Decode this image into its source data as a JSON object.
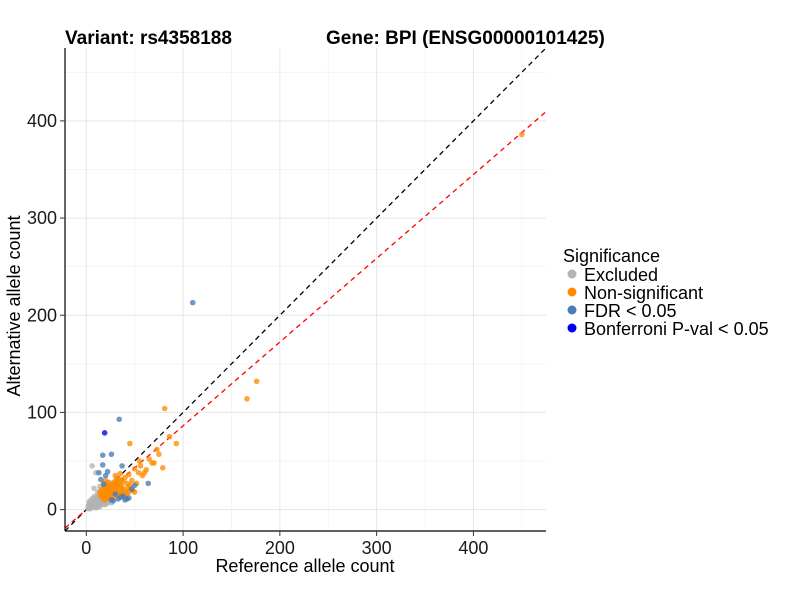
{
  "chart_data": {
    "type": "scatter",
    "title_left": "Variant: rs4358188",
    "title_right": "Gene: BPI (ENSG00000101425)",
    "xlabel": "Reference allele count",
    "ylabel": "Alternative allele count",
    "xlim": [
      -22,
      475
    ],
    "ylim": [
      -22,
      475
    ],
    "xticks": [
      0,
      100,
      200,
      300,
      400
    ],
    "yticks": [
      0,
      100,
      200,
      300,
      400
    ],
    "grid": true,
    "reference_lines": [
      {
        "name": "identity",
        "slope": 1.0,
        "intercept": 0,
        "color": "#000000",
        "dash": true
      },
      {
        "name": "fitted",
        "slope": 0.862,
        "intercept": 0,
        "color": "#ff0000",
        "dash": true
      }
    ],
    "legend": {
      "title": "Significance",
      "position": "right",
      "entries": [
        {
          "label": "Excluded",
          "color": "#b3b3b3"
        },
        {
          "label": "Non-significant",
          "color": "#ff8c00"
        },
        {
          "label": "FDR < 0.05",
          "color": "#4a7cb5"
        },
        {
          "label": "Bonferroni P-val < 0.05",
          "color": "#0000ee"
        }
      ]
    },
    "series": [
      {
        "name": "Excluded",
        "color": "#b3b3b3",
        "points": [
          [
            2,
            1
          ],
          [
            3,
            2
          ],
          [
            4,
            1
          ],
          [
            5,
            3
          ],
          [
            6,
            2
          ],
          [
            7,
            4
          ],
          [
            8,
            3
          ],
          [
            9,
            2
          ],
          [
            10,
            5
          ],
          [
            11,
            4
          ],
          [
            12,
            6
          ],
          [
            13,
            5
          ],
          [
            14,
            3
          ],
          [
            15,
            7
          ],
          [
            16,
            6
          ],
          [
            17,
            8
          ],
          [
            18,
            7
          ],
          [
            19,
            5
          ],
          [
            20,
            9
          ],
          [
            21,
            6
          ],
          [
            22,
            10
          ],
          [
            23,
            8
          ],
          [
            24,
            9
          ],
          [
            25,
            11
          ],
          [
            26,
            7
          ],
          [
            5,
            6
          ],
          [
            8,
            9
          ],
          [
            10,
            12
          ],
          [
            12,
            14
          ],
          [
            14,
            10
          ],
          [
            16,
            12
          ],
          [
            18,
            15
          ],
          [
            20,
            16
          ],
          [
            22,
            14
          ],
          [
            24,
            17
          ],
          [
            26,
            15
          ],
          [
            28,
            18
          ],
          [
            30,
            16
          ],
          [
            6,
            8
          ],
          [
            9,
            11
          ],
          [
            11,
            13
          ],
          [
            13,
            8
          ],
          [
            15,
            11
          ],
          [
            17,
            14
          ],
          [
            19,
            17
          ],
          [
            21,
            19
          ],
          [
            23,
            20
          ],
          [
            25,
            13
          ],
          [
            27,
            12
          ],
          [
            29,
            19
          ],
          [
            31,
            21
          ],
          [
            33,
            18
          ],
          [
            3,
            5
          ],
          [
            4,
            7
          ],
          [
            7,
            10
          ],
          [
            9,
            14
          ],
          [
            12,
            18
          ],
          [
            15,
            20
          ],
          [
            18,
            24
          ],
          [
            20,
            22
          ],
          [
            22,
            25
          ],
          [
            24,
            28
          ],
          [
            26,
            23
          ],
          [
            28,
            27
          ],
          [
            30,
            30
          ],
          [
            10,
            38
          ],
          [
            6,
            45
          ],
          [
            8,
            22
          ],
          [
            14,
            24
          ],
          [
            16,
            9
          ],
          [
            11,
            2
          ],
          [
            13,
            4
          ],
          [
            17,
            10
          ],
          [
            19,
            12
          ],
          [
            21,
            13
          ],
          [
            2,
            4
          ],
          [
            3,
            8
          ],
          [
            5,
            10
          ],
          [
            7,
            12
          ],
          [
            4,
            3
          ],
          [
            6,
            5
          ],
          [
            8,
            6
          ],
          [
            10,
            8
          ],
          [
            12,
            10
          ],
          [
            14,
            12
          ],
          [
            16,
            14
          ],
          [
            18,
            11
          ],
          [
            20,
            13
          ],
          [
            22,
            18
          ],
          [
            24,
            20
          ],
          [
            26,
            19
          ],
          [
            28,
            21
          ],
          [
            30,
            24
          ],
          [
            32,
            22
          ],
          [
            34,
            26
          ],
          [
            35,
            20
          ],
          [
            36,
            23
          ]
        ]
      },
      {
        "name": "Non-significant",
        "color": "#ff8c00",
        "points": [
          [
            450,
            386
          ],
          [
            176,
            132
          ],
          [
            166,
            114
          ],
          [
            81,
            104
          ],
          [
            93,
            68
          ],
          [
            75,
            57
          ],
          [
            68,
            48
          ],
          [
            62,
            41
          ],
          [
            58,
            35
          ],
          [
            54,
            38
          ],
          [
            50,
            42
          ],
          [
            47,
            30
          ],
          [
            44,
            36
          ],
          [
            42,
            27
          ],
          [
            40,
            33
          ],
          [
            38,
            29
          ],
          [
            36,
            25
          ],
          [
            34,
            31
          ],
          [
            32,
            24
          ],
          [
            30,
            22
          ],
          [
            29,
            28
          ],
          [
            28,
            19
          ],
          [
            27,
            24
          ],
          [
            26,
            21
          ],
          [
            25,
            26
          ],
          [
            24,
            18
          ],
          [
            23,
            23
          ],
          [
            22,
            20
          ],
          [
            21,
            17
          ],
          [
            20,
            22
          ],
          [
            19,
            15
          ],
          [
            18,
            19
          ],
          [
            17,
            16
          ],
          [
            16,
            21
          ],
          [
            15,
            14
          ],
          [
            14,
            18
          ],
          [
            33,
            20
          ],
          [
            31,
            26
          ],
          [
            28,
            14
          ],
          [
            26,
            17
          ],
          [
            24,
            24
          ],
          [
            22,
            28
          ],
          [
            20,
            30
          ],
          [
            18,
            27
          ],
          [
            35,
            37
          ],
          [
            37,
            22
          ],
          [
            39,
            17
          ],
          [
            41,
            19
          ],
          [
            43,
            23
          ],
          [
            45,
            25
          ],
          [
            48,
            20
          ],
          [
            52,
            27
          ],
          [
            56,
            45
          ],
          [
            60,
            38
          ],
          [
            65,
            52
          ],
          [
            70,
            48
          ],
          [
            73,
            62
          ],
          [
            79,
            43
          ],
          [
            86,
            75
          ],
          [
            45,
            68
          ],
          [
            55,
            50
          ],
          [
            30,
            18
          ],
          [
            27,
            16
          ],
          [
            25,
            15
          ],
          [
            23,
            12
          ],
          [
            21,
            11
          ],
          [
            19,
            10
          ],
          [
            17,
            12
          ],
          [
            15,
            16
          ],
          [
            20,
            25
          ],
          [
            22,
            15
          ],
          [
            24,
            13
          ],
          [
            26,
            12
          ],
          [
            28,
            25
          ],
          [
            30,
            35
          ],
          [
            32,
            15
          ],
          [
            34,
            13
          ],
          [
            36,
            18
          ],
          [
            38,
            21
          ],
          [
            40,
            14
          ],
          [
            42,
            16
          ],
          [
            44,
            18
          ],
          [
            46,
            22
          ],
          [
            50,
            18
          ],
          [
            32,
            32
          ],
          [
            29,
            17
          ],
          [
            25,
            20
          ],
          [
            23,
            18
          ],
          [
            21,
            14
          ],
          [
            19,
            20
          ],
          [
            35,
            16
          ],
          [
            33,
            27
          ],
          [
            31,
            29
          ],
          [
            36,
            30
          ]
        ]
      },
      {
        "name": "FDR < 0.05",
        "color": "#4a7cb5",
        "points": [
          [
            110,
            213
          ],
          [
            34,
            93
          ],
          [
            17,
            56
          ],
          [
            26,
            57
          ],
          [
            20,
            35
          ],
          [
            17,
            46
          ],
          [
            37,
            45
          ],
          [
            13,
            38
          ],
          [
            64,
            27
          ],
          [
            47,
            21
          ],
          [
            50,
            25
          ],
          [
            40,
            10
          ],
          [
            30,
            16
          ],
          [
            28,
            9
          ],
          [
            36,
            13
          ],
          [
            42,
            11
          ],
          [
            33,
            11
          ],
          [
            38,
            14
          ],
          [
            44,
            12
          ],
          [
            26,
            10
          ],
          [
            18,
            26
          ],
          [
            15,
            31
          ],
          [
            22,
            39
          ]
        ]
      },
      {
        "name": "Bonferroni P-val < 0.05",
        "color": "#0000ee",
        "points": [
          [
            19,
            79
          ]
        ]
      }
    ]
  }
}
